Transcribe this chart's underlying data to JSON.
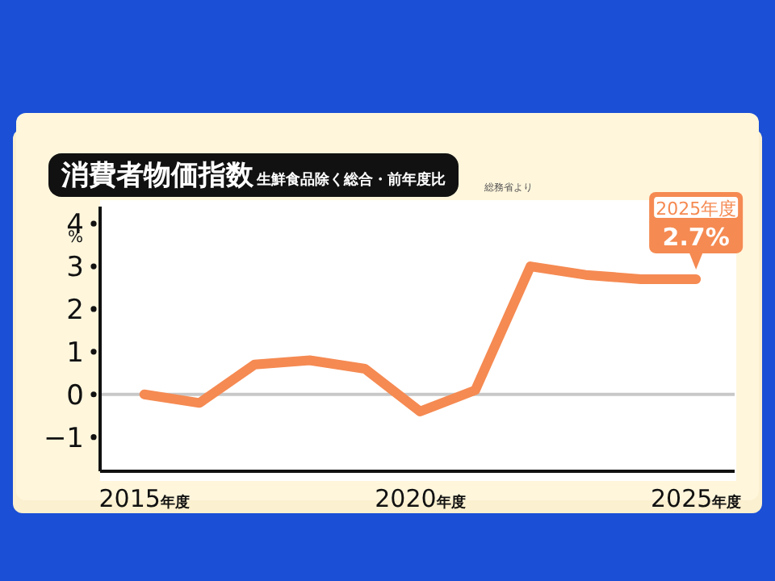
{
  "chart_data": {
    "type": "line",
    "title": "消費者物価指数",
    "subtitle": "生鮮食品除く総合・前年度比",
    "ylabel": "%",
    "x": [
      2015,
      2016,
      2017,
      2018,
      2019,
      2020,
      2021,
      2022,
      2023,
      2024,
      2025
    ],
    "series": [
      {
        "color": "#f58a52",
        "values": [
          0.0,
          -0.2,
          0.7,
          0.8,
          0.6,
          -0.4,
          0.1,
          3.0,
          2.8,
          2.7,
          2.7
        ]
      }
    ],
    "xlim": [
      2014.2,
      2025.7
    ],
    "xticks": [
      {
        "value": 2015,
        "label": "2015年度"
      },
      {
        "value": 2020,
        "label": "2020年度"
      },
      {
        "value": 2025,
        "label": "2025年度"
      }
    ],
    "ylim": [
      -1.8,
      4.4
    ],
    "yticks": [
      {
        "value": -1,
        "label": "−1"
      },
      0,
      1,
      2,
      3,
      4
    ],
    "ref_lines": [
      {
        "axis": "y",
        "value": 0,
        "color": "#c8c8c8"
      }
    ],
    "grid": false,
    "legend": false,
    "marker": "none",
    "line_style": "solid",
    "annotations": [
      "総務省より",
      {
        "text": "2025年度\n2.7%",
        "x": 2025,
        "y": 2.7
      }
    ]
  }
}
